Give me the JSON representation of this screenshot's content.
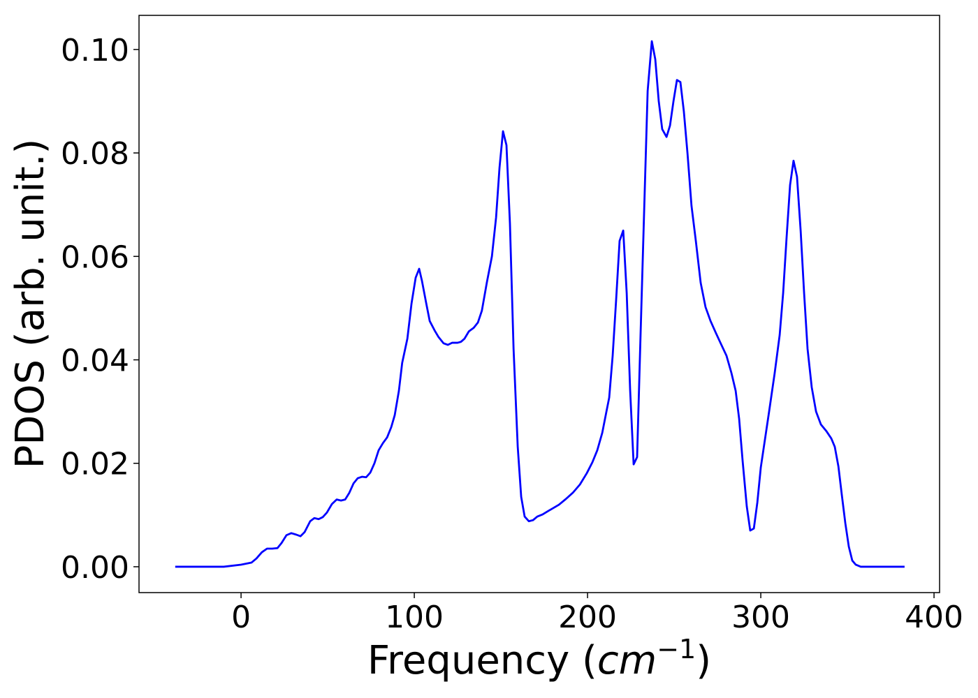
{
  "chart_data": {
    "type": "line",
    "xlabel": [
      "Frequency (",
      "cm",
      "−1",
      ")"
    ],
    "ylabel": "PDOS (arb. unit.)",
    "color": "#0000ff",
    "x": [
      -38,
      -10,
      0,
      6,
      8.9,
      12,
      15,
      18,
      21,
      23.4,
      26.2,
      29,
      31.9,
      34.3,
      36.7,
      39.9,
      42.3,
      44.8,
      47.2,
      49.6,
      52.4,
      55.2,
      57.7,
      60.1,
      62.5,
      64.9,
      67.3,
      69.8,
      72.2,
      74.6,
      77,
      79.4,
      81.9,
      84.3,
      86.7,
      88.7,
      91.1,
      93,
      96,
      98.4,
      100.8,
      102.8,
      104.4,
      106.9,
      108.9,
      111.7,
      114,
      116.9,
      119.4,
      121.8,
      125,
      127,
      129,
      131.5,
      134.3,
      136.7,
      139,
      141.9,
      144.8,
      147.2,
      149.2,
      151.2,
      153.2,
      155.2,
      157.3,
      159.7,
      161.7,
      163.7,
      166.1,
      168.5,
      171,
      174,
      177.4,
      180,
      183.5,
      187.5,
      191.5,
      195.6,
      199.6,
      202.8,
      205.6,
      208.5,
      210.9,
      212.5,
      214.5,
      216.5,
      218.5,
      220.6,
      222.6,
      224.6,
      226.6,
      228.6,
      230.6,
      232.7,
      234.7,
      237.1,
      239.1,
      241.1,
      243.1,
      245.6,
      247.6,
      249.6,
      251.6,
      253.6,
      255.6,
      257.7,
      260,
      262.5,
      265.3,
      268.1,
      271,
      274.2,
      277.4,
      280.2,
      283.1,
      285.5,
      287.5,
      289.5,
      291.9,
      293.9,
      296,
      298,
      300,
      302.4,
      304.8,
      308,
      310.9,
      312.9,
      314.9,
      316.9,
      318.9,
      320.9,
      323,
      325,
      327,
      329.4,
      331.9,
      334.7,
      337.9,
      340.7,
      342.7,
      344.8,
      346.8,
      348.8,
      350.8,
      352.8,
      354.8,
      357.7,
      383
    ],
    "values": [
      0,
      0,
      0.0004,
      0.0008,
      0.0016,
      0.0028,
      0.0035,
      0.0035,
      0.0036,
      0.0046,
      0.0061,
      0.0065,
      0.0062,
      0.0059,
      0.0067,
      0.0088,
      0.0094,
      0.0092,
      0.0096,
      0.0105,
      0.0121,
      0.013,
      0.0128,
      0.013,
      0.0143,
      0.0161,
      0.0171,
      0.0174,
      0.0173,
      0.0182,
      0.02,
      0.0225,
      0.0239,
      0.025,
      0.027,
      0.0293,
      0.034,
      0.0394,
      0.0441,
      0.0509,
      0.0559,
      0.0576,
      0.0553,
      0.0509,
      0.0475,
      0.0457,
      0.0444,
      0.0432,
      0.0429,
      0.0433,
      0.0433,
      0.0435,
      0.0441,
      0.0455,
      0.0462,
      0.0472,
      0.0495,
      0.055,
      0.06,
      0.0675,
      0.0772,
      0.0842,
      0.0815,
      0.0664,
      0.0421,
      0.0232,
      0.0135,
      0.0097,
      0.0088,
      0.009,
      0.0097,
      0.0101,
      0.0108,
      0.0113,
      0.012,
      0.0131,
      0.0143,
      0.0159,
      0.0181,
      0.0202,
      0.0225,
      0.0259,
      0.03,
      0.0327,
      0.0408,
      0.0516,
      0.063,
      0.065,
      0.0529,
      0.034,
      0.0198,
      0.0212,
      0.0448,
      0.0691,
      0.092,
      0.1016,
      0.0981,
      0.09,
      0.0846,
      0.0831,
      0.0853,
      0.09,
      0.0941,
      0.0937,
      0.088,
      0.0799,
      0.0698,
      0.063,
      0.0549,
      0.0502,
      0.0475,
      0.0451,
      0.0428,
      0.0408,
      0.0374,
      0.034,
      0.0286,
      0.0205,
      0.0117,
      0.007,
      0.0074,
      0.0124,
      0.0192,
      0.0246,
      0.03,
      0.0374,
      0.0448,
      0.0529,
      0.0637,
      0.0738,
      0.0785,
      0.0754,
      0.065,
      0.0529,
      0.0421,
      0.0347,
      0.03,
      0.0275,
      0.0262,
      0.0248,
      0.0232,
      0.0194,
      0.0138,
      0.0084,
      0.0039,
      0.0012,
      0.0004,
      0,
      0
    ],
    "xlim": [
      -58.9,
      403.2
    ],
    "ylim": [
      -0.005,
      0.1066
    ],
    "xticks": [
      0,
      100,
      200,
      300,
      400
    ],
    "yticks": [
      {
        "value": 0,
        "label": "0.00"
      },
      {
        "value": 0.02,
        "label": "0.02"
      },
      {
        "value": 0.04,
        "label": "0.04"
      },
      {
        "value": 0.06,
        "label": "0.06"
      },
      {
        "value": 0.08,
        "label": "0.08"
      },
      {
        "value": 0.1,
        "label": "0.10"
      }
    ]
  }
}
